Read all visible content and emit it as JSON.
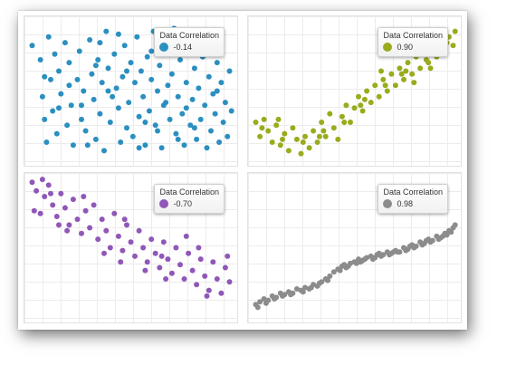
{
  "chart_data": [
    {
      "type": "scatter",
      "legend_title": "Data Correlation",
      "legend_value": "-0.14",
      "legend_position": "top-right",
      "color": "#2b8fc0",
      "grid": true,
      "xlim": [
        0,
        100
      ],
      "ylim": [
        0,
        100
      ],
      "points": [
        [
          2,
          82
        ],
        [
          6,
          72
        ],
        [
          7,
          46
        ],
        [
          8,
          30
        ],
        [
          9,
          14
        ],
        [
          10,
          88
        ],
        [
          11,
          58
        ],
        [
          12,
          36
        ],
        [
          13,
          76
        ],
        [
          14,
          20
        ],
        [
          15,
          64
        ],
        [
          16,
          48
        ],
        [
          18,
          84
        ],
        [
          19,
          26
        ],
        [
          20,
          70
        ],
        [
          21,
          40
        ],
        [
          22,
          12
        ],
        [
          24,
          58
        ],
        [
          25,
          78
        ],
        [
          26,
          30
        ],
        [
          27,
          50
        ],
        [
          28,
          22
        ],
        [
          30,
          86
        ],
        [
          31,
          62
        ],
        [
          32,
          44
        ],
        [
          33,
          16
        ],
        [
          34,
          72
        ],
        [
          35,
          34
        ],
        [
          36,
          56
        ],
        [
          37,
          8
        ],
        [
          38,
          92
        ],
        [
          39,
          66
        ],
        [
          40,
          28
        ],
        [
          41,
          46
        ],
        [
          42,
          76
        ],
        [
          43,
          52
        ],
        [
          44,
          38
        ],
        [
          45,
          14
        ],
        [
          46,
          60
        ],
        [
          47,
          82
        ],
        [
          48,
          24
        ],
        [
          49,
          42
        ],
        [
          50,
          70
        ],
        [
          51,
          18
        ],
        [
          52,
          56
        ],
        [
          53,
          88
        ],
        [
          54,
          32
        ],
        [
          55,
          64
        ],
        [
          56,
          46
        ],
        [
          57,
          12
        ],
        [
          58,
          74
        ],
        [
          59,
          36
        ],
        [
          60,
          58
        ],
        [
          61,
          92
        ],
        [
          62,
          26
        ],
        [
          63,
          50
        ],
        [
          64,
          68
        ],
        [
          65,
          10
        ],
        [
          66,
          40
        ],
        [
          67,
          80
        ],
        [
          68,
          54
        ],
        [
          69,
          30
        ],
        [
          70,
          62
        ],
        [
          71,
          94
        ],
        [
          72,
          20
        ],
        [
          73,
          46
        ],
        [
          74,
          72
        ],
        [
          75,
          34
        ],
        [
          76,
          12
        ],
        [
          77,
          56
        ],
        [
          78,
          84
        ],
        [
          79,
          26
        ],
        [
          80,
          44
        ],
        [
          81,
          66
        ],
        [
          82,
          16
        ],
        [
          83,
          52
        ],
        [
          84,
          30
        ],
        [
          85,
          74
        ],
        [
          86,
          40
        ],
        [
          87,
          10
        ],
        [
          88,
          60
        ],
        [
          89,
          22
        ],
        [
          90,
          48
        ],
        [
          91,
          34
        ],
        [
          92,
          70
        ],
        [
          93,
          14
        ],
        [
          94,
          56
        ],
        [
          95,
          28
        ],
        [
          96,
          42
        ],
        [
          97,
          18
        ],
        [
          98,
          64
        ],
        [
          99,
          36
        ],
        [
          26,
          40
        ],
        [
          33,
          68
        ],
        [
          15,
          38
        ],
        [
          29,
          12
        ],
        [
          44,
          90
        ],
        [
          57,
          28
        ],
        [
          63,
          22
        ],
        [
          77,
          38
        ],
        [
          86,
          84
        ],
        [
          92,
          50
        ],
        [
          8,
          60
        ],
        [
          39,
          50
        ],
        [
          48,
          64
        ],
        [
          54,
          10
        ],
        [
          67,
          42
        ],
        [
          73,
          16
        ],
        [
          81,
          24
        ],
        [
          60,
          78
        ],
        [
          35,
          84
        ],
        [
          20,
          54
        ]
      ]
    },
    {
      "type": "scatter",
      "legend_title": "Data Correlation",
      "legend_value": "0.90",
      "legend_position": "top-right",
      "color": "#9aab1c",
      "grid": true,
      "xlim": [
        0,
        100
      ],
      "ylim": [
        0,
        100
      ],
      "points": [
        [
          2,
          28
        ],
        [
          4,
          18
        ],
        [
          6,
          30
        ],
        [
          8,
          22
        ],
        [
          10,
          14
        ],
        [
          12,
          26
        ],
        [
          14,
          12
        ],
        [
          16,
          20
        ],
        [
          18,
          8
        ],
        [
          20,
          24
        ],
        [
          22,
          16
        ],
        [
          24,
          6
        ],
        [
          26,
          18
        ],
        [
          28,
          10
        ],
        [
          30,
          22
        ],
        [
          32,
          14
        ],
        [
          34,
          28
        ],
        [
          36,
          18
        ],
        [
          38,
          34
        ],
        [
          40,
          24
        ],
        [
          42,
          16
        ],
        [
          44,
          32
        ],
        [
          46,
          40
        ],
        [
          48,
          28
        ],
        [
          50,
          38
        ],
        [
          52,
          46
        ],
        [
          54,
          36
        ],
        [
          56,
          50
        ],
        [
          58,
          42
        ],
        [
          60,
          54
        ],
        [
          62,
          46
        ],
        [
          64,
          58
        ],
        [
          66,
          50
        ],
        [
          68,
          62
        ],
        [
          70,
          54
        ],
        [
          72,
          66
        ],
        [
          74,
          58
        ],
        [
          76,
          70
        ],
        [
          78,
          62
        ],
        [
          80,
          74
        ],
        [
          82,
          66
        ],
        [
          84,
          78
        ],
        [
          86,
          70
        ],
        [
          88,
          82
        ],
        [
          90,
          74
        ],
        [
          92,
          86
        ],
        [
          94,
          78
        ],
        [
          96,
          88
        ],
        [
          98,
          82
        ],
        [
          5,
          24
        ],
        [
          15,
          16
        ],
        [
          25,
          14
        ],
        [
          35,
          22
        ],
        [
          45,
          28
        ],
        [
          55,
          44
        ],
        [
          65,
          54
        ],
        [
          75,
          64
        ],
        [
          85,
          72
        ],
        [
          95,
          84
        ],
        [
          13,
          30
        ],
        [
          33,
          18
        ],
        [
          53,
          40
        ],
        [
          73,
          62
        ],
        [
          93,
          90
        ],
        [
          63,
          64
        ],
        [
          79,
          56
        ],
        [
          87,
          66
        ],
        [
          99,
          92
        ]
      ]
    },
    {
      "type": "scatter",
      "legend_title": "Data Correlation",
      "legend_value": "-0.70",
      "legend_position": "top-right",
      "color": "#9057b8",
      "grid": true,
      "xlim": [
        0,
        100
      ],
      "ylim": [
        0,
        100
      ],
      "points": [
        [
          2,
          96
        ],
        [
          4,
          90
        ],
        [
          6,
          74
        ],
        [
          8,
          86
        ],
        [
          10,
          94
        ],
        [
          12,
          80
        ],
        [
          14,
          72
        ],
        [
          16,
          88
        ],
        [
          18,
          78
        ],
        [
          20,
          66
        ],
        [
          22,
          84
        ],
        [
          24,
          70
        ],
        [
          26,
          60
        ],
        [
          28,
          76
        ],
        [
          30,
          64
        ],
        [
          32,
          80
        ],
        [
          34,
          56
        ],
        [
          36,
          70
        ],
        [
          38,
          62
        ],
        [
          40,
          50
        ],
        [
          42,
          74
        ],
        [
          44,
          58
        ],
        [
          46,
          48
        ],
        [
          48,
          66
        ],
        [
          50,
          54
        ],
        [
          52,
          44
        ],
        [
          54,
          62
        ],
        [
          56,
          50
        ],
        [
          58,
          40
        ],
        [
          60,
          56
        ],
        [
          62,
          46
        ],
        [
          64,
          36
        ],
        [
          66,
          54
        ],
        [
          68,
          42
        ],
        [
          70,
          32
        ],
        [
          72,
          50
        ],
        [
          74,
          38
        ],
        [
          76,
          28
        ],
        [
          78,
          46
        ],
        [
          80,
          34
        ],
        [
          82,
          24
        ],
        [
          84,
          42
        ],
        [
          86,
          30
        ],
        [
          88,
          20
        ],
        [
          90,
          40
        ],
        [
          92,
          28
        ],
        [
          94,
          18
        ],
        [
          96,
          36
        ],
        [
          98,
          26
        ],
        [
          3,
          76
        ],
        [
          7,
          98
        ],
        [
          11,
          88
        ],
        [
          19,
          62
        ],
        [
          27,
          86
        ],
        [
          37,
          46
        ],
        [
          47,
          70
        ],
        [
          57,
          34
        ],
        [
          67,
          28
        ],
        [
          77,
          58
        ],
        [
          87,
          16
        ],
        [
          97,
          44
        ],
        [
          15,
          66
        ],
        [
          45,
          40
        ],
        [
          65,
          44
        ],
        [
          83,
          50
        ]
      ]
    },
    {
      "type": "scatter",
      "legend_title": "Data Correlation",
      "legend_value": "0.98",
      "legend_position": "top-right",
      "color": "#8c8c8c",
      "grid": true,
      "xlim": [
        0,
        100
      ],
      "ylim": [
        0,
        100
      ],
      "points": [
        [
          2,
          10
        ],
        [
          4,
          12
        ],
        [
          6,
          14
        ],
        [
          8,
          13
        ],
        [
          10,
          16
        ],
        [
          12,
          15
        ],
        [
          14,
          18
        ],
        [
          16,
          17
        ],
        [
          18,
          19
        ],
        [
          20,
          18
        ],
        [
          22,
          21
        ],
        [
          24,
          20
        ],
        [
          26,
          22
        ],
        [
          28,
          21
        ],
        [
          30,
          24
        ],
        [
          32,
          23
        ],
        [
          34,
          26
        ],
        [
          36,
          28
        ],
        [
          38,
          30
        ],
        [
          40,
          33
        ],
        [
          42,
          35
        ],
        [
          44,
          37
        ],
        [
          46,
          36
        ],
        [
          48,
          39
        ],
        [
          50,
          40
        ],
        [
          52,
          42
        ],
        [
          54,
          41
        ],
        [
          56,
          43
        ],
        [
          58,
          44
        ],
        [
          60,
          43
        ],
        [
          62,
          46
        ],
        [
          64,
          45
        ],
        [
          66,
          47
        ],
        [
          68,
          46
        ],
        [
          70,
          48
        ],
        [
          72,
          47
        ],
        [
          74,
          50
        ],
        [
          76,
          49
        ],
        [
          78,
          52
        ],
        [
          80,
          51
        ],
        [
          82,
          54
        ],
        [
          84,
          53
        ],
        [
          86,
          56
        ],
        [
          88,
          55
        ],
        [
          90,
          58
        ],
        [
          92,
          57
        ],
        [
          94,
          60
        ],
        [
          96,
          62
        ],
        [
          98,
          64
        ],
        [
          3,
          8
        ],
        [
          7,
          11
        ],
        [
          11,
          14
        ],
        [
          15,
          16
        ],
        [
          19,
          17
        ],
        [
          25,
          19
        ],
        [
          29,
          22
        ],
        [
          33,
          25
        ],
        [
          37,
          27
        ],
        [
          43,
          34
        ],
        [
          47,
          37
        ],
        [
          51,
          39
        ],
        [
          55,
          42
        ],
        [
          59,
          42
        ],
        [
          63,
          44
        ],
        [
          67,
          45
        ],
        [
          71,
          47
        ],
        [
          75,
          48
        ],
        [
          79,
          50
        ],
        [
          83,
          52
        ],
        [
          87,
          54
        ],
        [
          91,
          56
        ],
        [
          95,
          59
        ],
        [
          99,
          66
        ],
        [
          45,
          38
        ],
        [
          53,
          40
        ],
        [
          61,
          45
        ],
        [
          69,
          47
        ],
        [
          77,
          51
        ],
        [
          85,
          55
        ],
        [
          93,
          58
        ],
        [
          97,
          61
        ]
      ]
    }
  ]
}
